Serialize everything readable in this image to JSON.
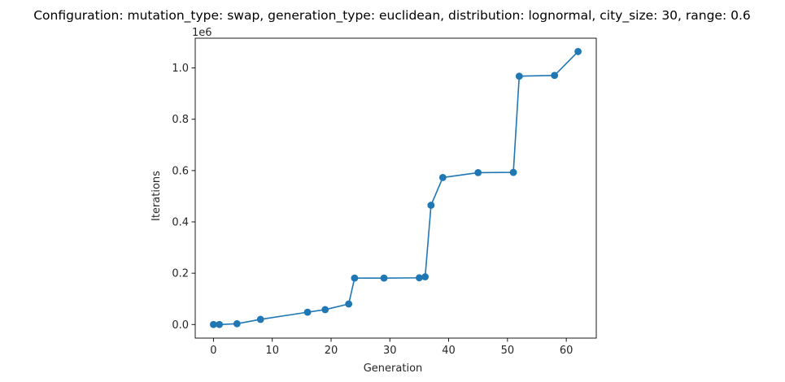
{
  "chart_data": {
    "type": "line",
    "title": "Configuration: mutation_type: swap, generation_type: euclidean, distribution: lognormal, city_size: 30, range: 0.6",
    "xlabel": "Generation",
    "ylabel": "Iterations",
    "y_offset_label": "1e6",
    "xlim": [
      -3.1,
      65.1
    ],
    "ylim": [
      -0.053,
      1.116
    ],
    "xticks": [
      0,
      10,
      20,
      30,
      40,
      50,
      60
    ],
    "yticks": [
      0.0,
      0.2,
      0.4,
      0.6,
      0.8,
      1.0
    ],
    "ytick_labels": [
      "0.0",
      "0.2",
      "0.4",
      "0.6",
      "0.8",
      "1.0"
    ],
    "grid": false,
    "series": [
      {
        "color": "#1f77b4",
        "marker": "circle",
        "x": [
          0,
          1,
          4,
          8,
          16,
          19,
          23,
          24,
          29,
          35,
          36,
          37,
          39,
          45,
          51,
          52,
          58,
          62
        ],
        "y": [
          0.0,
          0.0,
          0.003,
          0.02,
          0.048,
          0.058,
          0.08,
          0.181,
          0.181,
          0.182,
          0.186,
          0.465,
          0.573,
          0.592,
          0.593,
          0.968,
          0.971,
          1.064
        ]
      }
    ]
  }
}
